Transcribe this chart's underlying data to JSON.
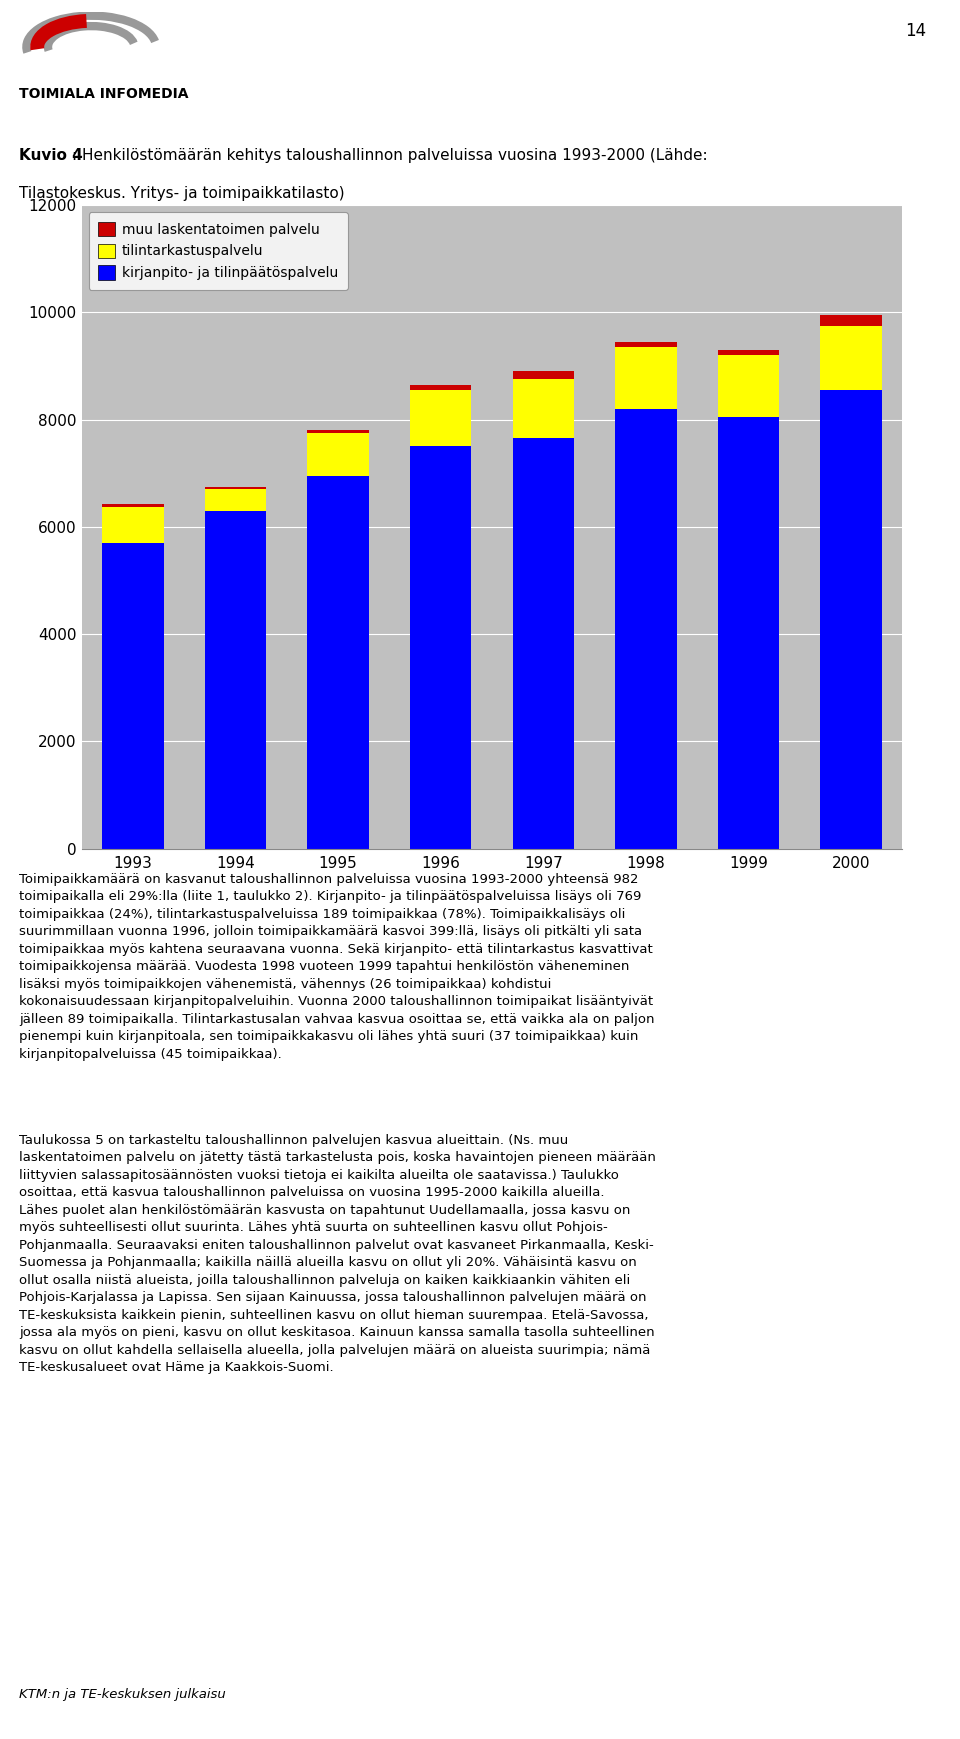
{
  "years": [
    "1993",
    "1994",
    "1995",
    "1996",
    "1997",
    "1998",
    "1999",
    "2000"
  ],
  "kirjanpito": [
    5700,
    6300,
    6950,
    7500,
    7650,
    8200,
    8050,
    8550
  ],
  "tilintarkastus": [
    680,
    400,
    800,
    1050,
    1100,
    1150,
    1150,
    1200
  ],
  "muu": [
    50,
    50,
    50,
    100,
    150,
    100,
    100,
    200
  ],
  "color_kirjanpito": "#0000FF",
  "color_tilintarkastus": "#FFFF00",
  "color_muu": "#CC0000",
  "ylim": [
    0,
    12000
  ],
  "yticks": [
    0,
    2000,
    4000,
    6000,
    8000,
    10000,
    12000
  ],
  "chart_title_part1": "Kuvio 4",
  "chart_title_part2": ": Henkilöstömäärän kehitys taloushallinnon palveluissa vuosina 1993-2000 (Lähde:",
  "chart_title_line2": "Tilastokeskus. Yritys- ja toimipaikkatilasto)",
  "legend_labels": [
    "muu laskentatoimen palvelu",
    "tilintarkastuspalvelu",
    "kirjanpito- ja tilinpäätöspalvelu"
  ],
  "page_number": "14",
  "logo_text": "TOIMIALA INFOMEDIA",
  "bg_color": "#C0C0C0",
  "body_text_1_lines": [
    "Toimipaikkamäärä on kasvanut taloushallinnon palveluissa vuosina 1993-2000 yhteensä 982",
    "toimipaikalla eli 29%:lla (liite 1, taulukko 2). Kirjanpito- ja tilinpäätöspalveluissa lisäys oli 769",
    "toimipaikkaa (24%), tilintarkastuspalveluissa 189 toimipaikkaa (78%). Toimipaikkalisäys oli",
    "suurimmillaan vuonna 1996, jolloin toimipaikkamäärä kasvoi 399:llä, lisäys oli pitkälti yli sata",
    "toimipaikkaa myös kahtena seuraavana vuonna. Sekä kirjanpito- että tilintarkastus kasvattivat",
    "toimipaikkojensa määrää. Vuodesta 1998 vuoteen 1999 tapahtui henkilöstön väheneminen",
    "lisäksi myös toimipaikkojen vähenemistä, vähennys (26 toimipaikkaa) kohdistui",
    "kokonaisuudessaan kirjanpitopalveluihin. Vuonna 2000 taloushallinnon toimipaikat lisääntyivät",
    "jälleen 89 toimipaikalla. Tilintarkastusalan vahvaa kasvua osoittaa se, että vaikka ala on paljon",
    "pienempi kuin kirjanpitoala, sen toimipaikkakasvu oli lähes yhtä suuri (37 toimipaikkaa) kuin",
    "kirjanpitopalveluissa (45 toimipaikkaa)."
  ],
  "body_text_2_lines": [
    "Taulukossa 5 on tarkasteltu taloushallinnon palvelujen kasvua alueittain. (Ns. muu",
    "laskentatoimen palvelu on jätetty tästä tarkastelusta pois, koska havaintojen pieneen määrään",
    "liittyvien salassapitosäännösten vuoksi tietoja ei kaikilta alueilta ole saatavissa.) Taulukko",
    "osoittaa, että kasvua taloushallinnon palveluissa on vuosina 1995-2000 kaikilla alueilla.",
    "Lähes puolet alan henkilöstömäärän kasvusta on tapahtunut Uudellamaalla, jossa kasvu on",
    "myös suhteellisesti ollut suurinta. Lähes yhtä suurta on suhteellinen kasvu ollut Pohjois-",
    "Pohjanmaalla. Seuraavaksi eniten taloushallinnon palvelut ovat kasvaneet Pirkanmaalla, Keski-",
    "Suomessa ja Pohjanmaalla; kaikilla näillä alueilla kasvu on ollut yli 20%. Vähäisintä kasvu on",
    "ollut osalla niistä alueista, joilla taloushallinnon palveluja on kaiken kaikkiaankin vähiten eli",
    "Pohjois-Karjalassa ja Lapissa. Sen sijaan Kainuussa, jossa taloushallinnon palvelujen määrä on",
    "TE-keskuksista kaikkein pienin, suhteellinen kasvu on ollut hieman suurempaa. Etelä-Savossa,",
    "jossa ala myös on pieni, kasvu on ollut keskitasoa. Kainuun kanssa samalla tasolla suhteellinen",
    "kasvu on ollut kahdella sellaisella alueella, jolla palvelujen määrä on alueista suurimpia; nämä",
    "TE-keskusalueet ovat Häme ja Kaakkois-Suomi."
  ],
  "footer_text": "KTM:n ja TE-keskuksen julkaisu"
}
